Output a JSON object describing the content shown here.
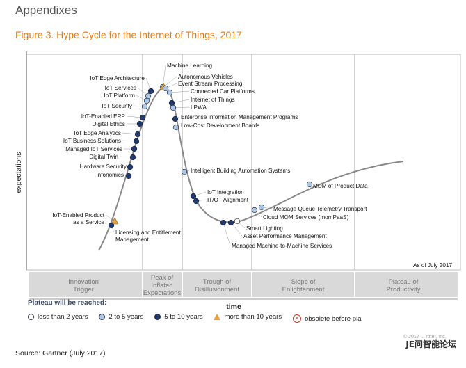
{
  "header": {
    "title": "Appendixes"
  },
  "figure": {
    "title": "Figure 3. Hype Cycle for the Internet of Things, 2017"
  },
  "chart_data": {
    "type": "hype-cycle",
    "title": "Figure 3. Hype Cycle for the Internet of Things, 2017",
    "ylabel": "expectations",
    "xlabel": "time",
    "as_of": "As of July 2017",
    "phases": [
      {
        "line1": "Innovation",
        "line2": "Trigger",
        "line3": ""
      },
      {
        "line1": "Peak of",
        "line2": "Inflated",
        "line3": "Expectations"
      },
      {
        "line1": "Trough of",
        "line2": "Disillusionment",
        "line3": ""
      },
      {
        "line1": "Slope of",
        "line2": "Enlightenment",
        "line3": ""
      },
      {
        "line1": "Plateau of",
        "line2": "Productivity",
        "line3": ""
      }
    ],
    "technologies": [
      {
        "name": "Machine Learning",
        "plateau": "2-5"
      },
      {
        "name": "IoT Edge Architecture",
        "plateau": "5-10"
      },
      {
        "name": "Autonomous Vehicles",
        "plateau": ">10"
      },
      {
        "name": "Event Stream Processing",
        "plateau": "2-5"
      },
      {
        "name": "IoT Services",
        "plateau": "2-5"
      },
      {
        "name": "Connected Car Platforms",
        "plateau": "2-5"
      },
      {
        "name": "IoT Platform",
        "plateau": "2-5"
      },
      {
        "name": "Internet of Things",
        "plateau": "5-10"
      },
      {
        "name": "IoT Security",
        "plateau": "2-5"
      },
      {
        "name": "LPWA",
        "plateau": "2-5"
      },
      {
        "name": "Enterprise Information Management Programs",
        "plateau": "5-10"
      },
      {
        "name": "IoT-Enabled ERP",
        "plateau": "5-10"
      },
      {
        "name": "Low-Cost Development Boards",
        "plateau": "2-5"
      },
      {
        "name": "Digital Ethics",
        "plateau": "5-10"
      },
      {
        "name": "IoT Edge Analytics",
        "plateau": "5-10"
      },
      {
        "name": "IoT Business Solutions",
        "plateau": "5-10"
      },
      {
        "name": "Managed IoT Services",
        "plateau": "5-10"
      },
      {
        "name": "Digital Twin",
        "plateau": "5-10"
      },
      {
        "name": "Hardware Security",
        "plateau": "5-10"
      },
      {
        "name": "Intelligent Building Automation Systems",
        "plateau": "2-5"
      },
      {
        "name": "Infonomics",
        "plateau": "5-10"
      },
      {
        "name": "IoT Integration",
        "plateau": "5-10"
      },
      {
        "name": "IT/OT Alignment",
        "plateau": "5-10"
      },
      {
        "name": "MDM of Product Data",
        "plateau": "2-5"
      },
      {
        "name": "IoT-Enabled Product as a Service",
        "plateau": ">10"
      },
      {
        "name": "Message Queue Telemetry Transport",
        "plateau": "2-5"
      },
      {
        "name": "Cloud MOM Services (momPaaS)",
        "plateau": "2-5"
      },
      {
        "name": "Licensing and Entitlement Management",
        "plateau": "5-10"
      },
      {
        "name": "Smart Lighting",
        "plateau": "<2"
      },
      {
        "name": "Asset Performance Management",
        "plateau": "5-10"
      },
      {
        "name": "Managed Machine-to-Machine Services",
        "plateau": "5-10"
      }
    ],
    "colors": {
      "<2": "#ffffff",
      "2-5": "#a9c8e8",
      "5-10": "#1f3a6e",
      ">10": "#e9a23b"
    }
  },
  "legend": {
    "title": "Plateau will be reached:",
    "items": [
      {
        "label": "less than 2 years",
        "symbol": "white-circle"
      },
      {
        "label": "2 to 5 years",
        "symbol": "light-blue-circle"
      },
      {
        "label": "5 to 10 years",
        "symbol": "dark-blue-circle"
      },
      {
        "label": "more than 10 years",
        "symbol": "orange-triangle"
      },
      {
        "label": "obsolete before pla",
        "symbol": "red-x-circle"
      }
    ]
  },
  "copyright": "© 2017 ... rtner, Inc.",
  "source": "Source: Gartner (July 2017)",
  "watermark": "JE问智能论坛"
}
